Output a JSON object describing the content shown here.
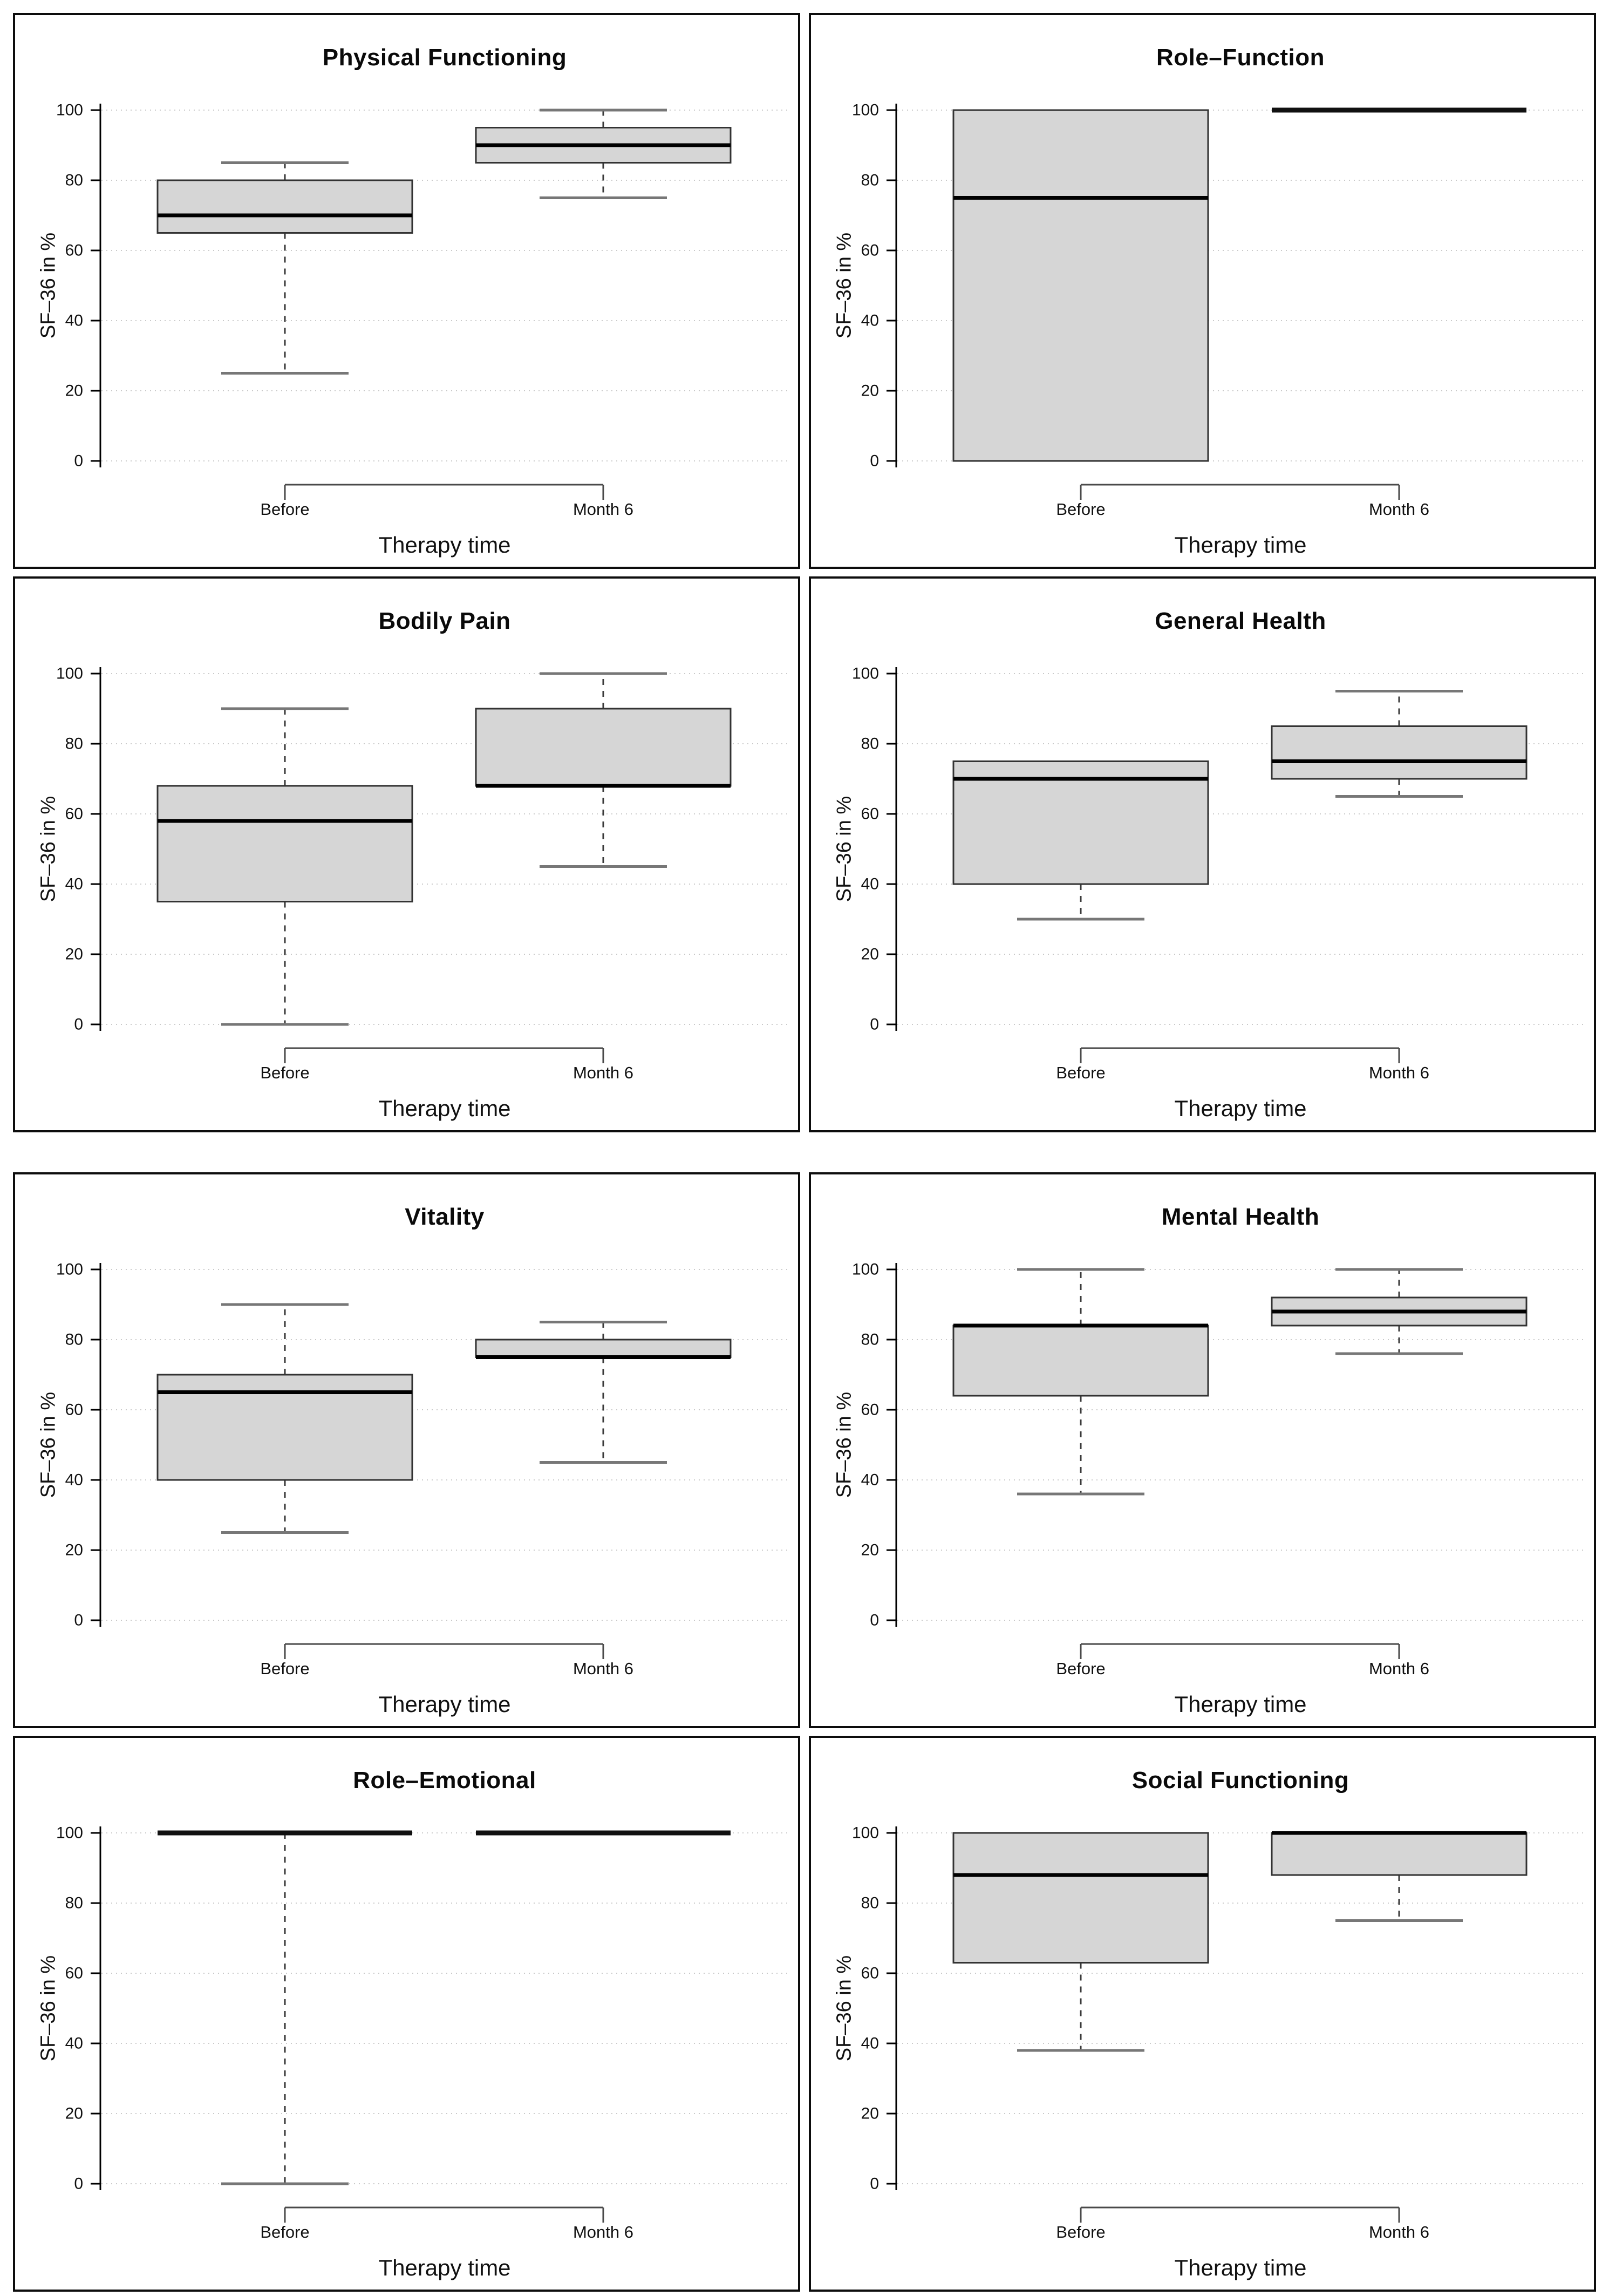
{
  "figure": {
    "description": "SF-36 quality of life subscale boxplots before therapy and at month 6",
    "shared_ylabel": "SF–36 in %",
    "shared_xlabel": "Therapy time",
    "categories": [
      "Before",
      "Month 6"
    ]
  },
  "colors": {
    "box_fill": "#d6d6d6",
    "box_stroke": "#333333",
    "median": "#000000",
    "whisker": "#3a3a3a",
    "cap": "#777777",
    "collapsed_line": "#111111",
    "grid": "#c9c9c9",
    "axis": "#000000",
    "x_axis": "#4a4a4a",
    "panel_border": "#0d0d0d",
    "text": "#111111"
  },
  "chart_data": [
    {
      "type": "boxplot",
      "title": "Physical Functioning",
      "xlabel": "Therapy time",
      "ylabel": "SF–36 in %",
      "categories": [
        "Before",
        "Month 6"
      ],
      "ylim": [
        0,
        100
      ],
      "yticks": [
        0,
        20,
        40,
        60,
        80,
        100
      ],
      "grid": true,
      "legend": false,
      "series": [
        {
          "name": "Before",
          "low": 25,
          "q1": 65,
          "median": 70,
          "q3": 80,
          "high": 85
        },
        {
          "name": "Month 6",
          "low": 75,
          "q1": 85,
          "median": 90,
          "q3": 95,
          "high": 100
        }
      ]
    },
    {
      "type": "boxplot",
      "title": "Role–Function",
      "xlabel": "Therapy time",
      "ylabel": "SF–36 in %",
      "categories": [
        "Before",
        "Month 6"
      ],
      "ylim": [
        0,
        100
      ],
      "yticks": [
        0,
        20,
        40,
        60,
        80,
        100
      ],
      "grid": true,
      "legend": false,
      "series": [
        {
          "name": "Before",
          "low": 0,
          "q1": 0,
          "median": 75,
          "q3": 100,
          "high": 100
        },
        {
          "name": "Month 6",
          "low": 100,
          "q1": 100,
          "median": 100,
          "q3": 100,
          "high": 100
        }
      ]
    },
    {
      "type": "boxplot",
      "title": "Bodily Pain",
      "xlabel": "Therapy time",
      "ylabel": "SF–36 in %",
      "categories": [
        "Before",
        "Month 6"
      ],
      "ylim": [
        0,
        100
      ],
      "yticks": [
        0,
        20,
        40,
        60,
        80,
        100
      ],
      "grid": true,
      "legend": false,
      "series": [
        {
          "name": "Before",
          "low": 0,
          "q1": 35,
          "median": 58,
          "q3": 68,
          "high": 90
        },
        {
          "name": "Month 6",
          "low": 45,
          "q1": 68,
          "median": 68,
          "q3": 90,
          "high": 100
        }
      ]
    },
    {
      "type": "boxplot",
      "title": "General Health",
      "xlabel": "Therapy time",
      "ylabel": "SF–36 in %",
      "categories": [
        "Before",
        "Month 6"
      ],
      "ylim": [
        0,
        100
      ],
      "yticks": [
        0,
        20,
        40,
        60,
        80,
        100
      ],
      "grid": true,
      "legend": false,
      "series": [
        {
          "name": "Before",
          "low": 30,
          "q1": 40,
          "median": 70,
          "q3": 75,
          "high": 75
        },
        {
          "name": "Month 6",
          "low": 65,
          "q1": 70,
          "median": 75,
          "q3": 85,
          "high": 95
        }
      ]
    },
    {
      "type": "boxplot",
      "title": "Vitality",
      "xlabel": "Therapy time",
      "ylabel": "SF–36 in %",
      "categories": [
        "Before",
        "Month 6"
      ],
      "ylim": [
        0,
        100
      ],
      "yticks": [
        0,
        20,
        40,
        60,
        80,
        100
      ],
      "grid": true,
      "legend": false,
      "series": [
        {
          "name": "Before",
          "low": 25,
          "q1": 40,
          "median": 65,
          "q3": 70,
          "high": 90
        },
        {
          "name": "Month 6",
          "low": 45,
          "q1": 75,
          "median": 75,
          "q3": 80,
          "high": 85
        }
      ]
    },
    {
      "type": "boxplot",
      "title": "Mental Health",
      "xlabel": "Therapy time",
      "ylabel": "SF–36 in %",
      "categories": [
        "Before",
        "Month 6"
      ],
      "ylim": [
        0,
        100
      ],
      "yticks": [
        0,
        20,
        40,
        60,
        80,
        100
      ],
      "grid": true,
      "legend": false,
      "series": [
        {
          "name": "Before",
          "low": 36,
          "q1": 64,
          "median": 84,
          "q3": 84,
          "high": 100
        },
        {
          "name": "Month 6",
          "low": 76,
          "q1": 84,
          "median": 88,
          "q3": 92,
          "high": 100
        }
      ]
    },
    {
      "type": "boxplot",
      "title": "Role–Emotional",
      "xlabel": "Therapy time",
      "ylabel": "SF–36 in %",
      "categories": [
        "Before",
        "Month 6"
      ],
      "ylim": [
        0,
        100
      ],
      "yticks": [
        0,
        20,
        40,
        60,
        80,
        100
      ],
      "grid": true,
      "legend": false,
      "series": [
        {
          "name": "Before",
          "low": 0,
          "q1": 100,
          "median": 100,
          "q3": 100,
          "high": 100
        },
        {
          "name": "Month 6",
          "low": 100,
          "q1": 100,
          "median": 100,
          "q3": 100,
          "high": 100
        }
      ]
    },
    {
      "type": "boxplot",
      "title": "Social Functioning",
      "xlabel": "Therapy time",
      "ylabel": "SF–36 in %",
      "categories": [
        "Before",
        "Month 6"
      ],
      "ylim": [
        0,
        100
      ],
      "yticks": [
        0,
        20,
        40,
        60,
        80,
        100
      ],
      "grid": true,
      "legend": false,
      "series": [
        {
          "name": "Before",
          "low": 38,
          "q1": 63,
          "median": 88,
          "q3": 100,
          "high": 100
        },
        {
          "name": "Month 6",
          "low": 75,
          "q1": 88,
          "median": 100,
          "q3": 100,
          "high": 100
        }
      ]
    }
  ]
}
